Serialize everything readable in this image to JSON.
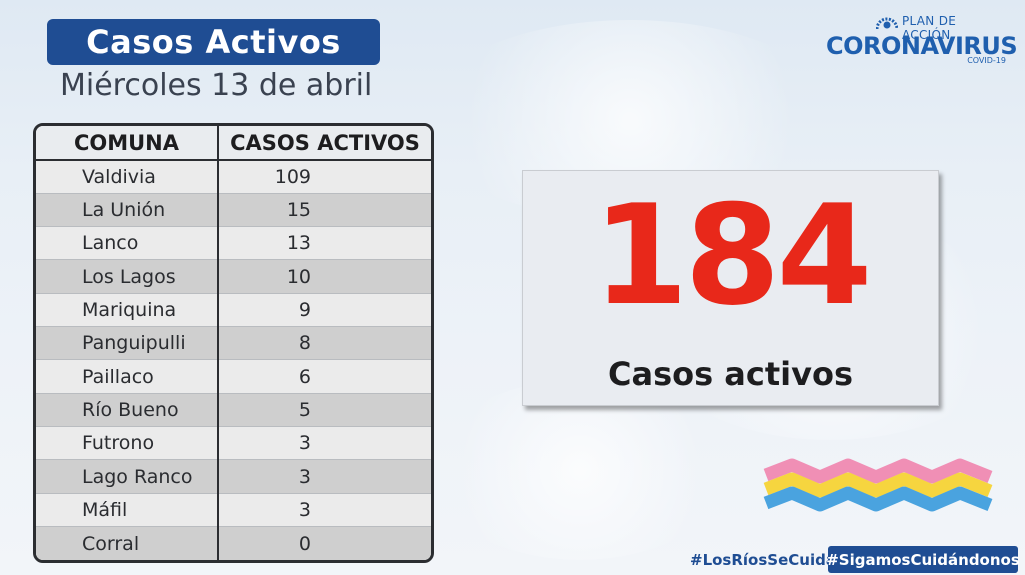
{
  "header": {
    "title": "Casos Activos",
    "date": "Miércoles 13 de abril"
  },
  "logo": {
    "plan": "PLAN DE ACCIÓN",
    "name": "CORONAVIRUS",
    "sub": "COVID-19"
  },
  "table": {
    "columns": [
      "COMUNA",
      "CASOS ACTIVOS"
    ],
    "rows": [
      {
        "comuna": "Valdivia",
        "casos": "109"
      },
      {
        "comuna": "La Unión",
        "casos": "15"
      },
      {
        "comuna": "Lanco",
        "casos": "13"
      },
      {
        "comuna": "Los Lagos",
        "casos": "10"
      },
      {
        "comuna": "Mariquina",
        "casos": "9"
      },
      {
        "comuna": "Panguipulli",
        "casos": "8"
      },
      {
        "comuna": "Paillaco",
        "casos": "6"
      },
      {
        "comuna": "Río Bueno",
        "casos": "5"
      },
      {
        "comuna": "Futrono",
        "casos": "3"
      },
      {
        "comuna": "Lago Ranco",
        "casos": "3"
      },
      {
        "comuna": "Máfil",
        "casos": "3"
      },
      {
        "comuna": "Corral",
        "casos": "0"
      }
    ]
  },
  "total": {
    "number": "184",
    "label": "Casos activos"
  },
  "hashtags": {
    "first": "#LosRíosSeCuida",
    "second": "#SigamosCuidándonos"
  },
  "colors": {
    "brand_blue": "#1f4d93",
    "accent_red": "#e8281a",
    "wave_pink": "#f08fb5",
    "wave_yellow": "#f6d53f",
    "wave_blue": "#4aa3df"
  }
}
